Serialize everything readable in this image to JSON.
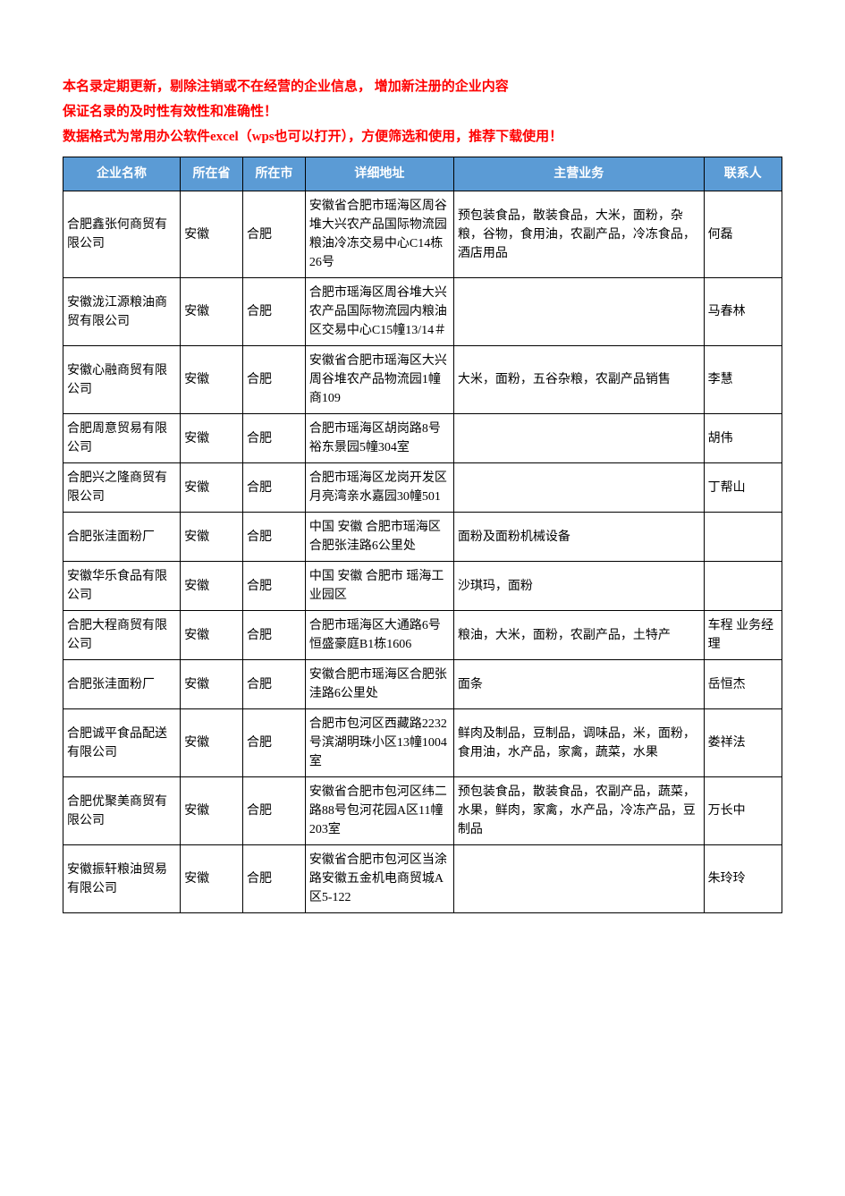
{
  "header": {
    "line1": "本名录定期更新，剔除注销或不在经营的企业信息， 增加新注册的企业内容",
    "line2": "保证名录的及时性有效性和准确性！",
    "line3": "数据格式为常用办公软件excel（wps也可以打开），方便筛选和使用，推荐下载使用！"
  },
  "table": {
    "header_bg_color": "#5b9bd5",
    "header_text_color": "#ffffff",
    "border_color": "#000000",
    "columns": [
      {
        "key": "name",
        "label": "企业名称",
        "width": "15%"
      },
      {
        "key": "province",
        "label": "所在省",
        "width": "8%"
      },
      {
        "key": "city",
        "label": "所在市",
        "width": "8%"
      },
      {
        "key": "address",
        "label": "详细地址",
        "width": "19%"
      },
      {
        "key": "business",
        "label": "主营业务",
        "width": "32%"
      },
      {
        "key": "contact",
        "label": "联系人",
        "width": "10%"
      }
    ],
    "rows": [
      {
        "name": "合肥鑫张何商贸有限公司",
        "province": "安徽",
        "city": "合肥",
        "address": "安徽省合肥市瑶海区周谷堆大兴农产品国际物流园粮油冷冻交易中心C14栋26号",
        "business": "预包装食品，散装食品，大米，面粉，杂粮，谷物，食用油，农副产品，冷冻食品，酒店用品",
        "contact": "何磊"
      },
      {
        "name": "安徽泷江源粮油商贸有限公司",
        "province": "安徽",
        "city": "合肥",
        "address": "合肥市瑶海区周谷堆大兴农产品国际物流园内粮油区交易中心C15幢13/14＃",
        "business": "",
        "contact": "马春林"
      },
      {
        "name": "安徽心融商贸有限公司",
        "province": "安徽",
        "city": "合肥",
        "address": "安徽省合肥市瑶海区大兴周谷堆农产品物流园1幢商109",
        "business": "大米，面粉，五谷杂粮，农副产品销售",
        "contact": "李慧"
      },
      {
        "name": "合肥周意贸易有限公司",
        "province": "安徽",
        "city": "合肥",
        "address": "合肥市瑶海区胡岗路8号裕东景园5幢304室",
        "business": "",
        "contact": "胡伟"
      },
      {
        "name": "合肥兴之隆商贸有限公司",
        "province": "安徽",
        "city": "合肥",
        "address": "合肥市瑶海区龙岗开发区月亮湾亲水嘉园30幢501",
        "business": "",
        "contact": "丁帮山"
      },
      {
        "name": "合肥张洼面粉厂",
        "province": "安徽",
        "city": "合肥",
        "address": "中国 安徽 合肥市瑶海区 合肥张洼路6公里处",
        "business": "面粉及面粉机械设备",
        "contact": ""
      },
      {
        "name": "安徽华乐食品有限公司",
        "province": "安徽",
        "city": "合肥",
        "address": "中国 安徽 合肥市 瑶海工业园区",
        "business": "沙琪玛，面粉",
        "contact": ""
      },
      {
        "name": "合肥大程商贸有限公司",
        "province": "安徽",
        "city": "合肥",
        "address": "合肥市瑶海区大通路6号恒盛豪庭B1栋1606",
        "business": "粮油，大米，面粉，农副产品，土特产",
        "contact": "车程 业务经理"
      },
      {
        "name": "合肥张洼面粉厂",
        "province": "安徽",
        "city": "合肥",
        "address": "安徽合肥市瑶海区合肥张洼路6公里处",
        "business": "面条",
        "contact": "岳恒杰"
      },
      {
        "name": "合肥诚平食品配送有限公司",
        "province": "安徽",
        "city": "合肥",
        "address": "合肥市包河区西藏路2232号滨湖明珠小区13幢1004室",
        "business": "鲜肉及制品，豆制品，调味品，米，面粉，食用油，水产品，家禽，蔬菜，水果",
        "contact": "娄祥法"
      },
      {
        "name": "合肥优聚美商贸有限公司",
        "province": "安徽",
        "city": "合肥",
        "address": "安徽省合肥市包河区纬二路88号包河花园A区11幢203室",
        "business": "预包装食品，散装食品，农副产品，蔬菜，水果，鲜肉，家禽，水产品，冷冻产品，豆制品",
        "contact": "万长中"
      },
      {
        "name": "安徽振轩粮油贸易有限公司",
        "province": "安徽",
        "city": "合肥",
        "address": "安徽省合肥市包河区当涂路安徽五金机电商贸城A区5-122",
        "business": "",
        "contact": "朱玲玲"
      }
    ]
  }
}
